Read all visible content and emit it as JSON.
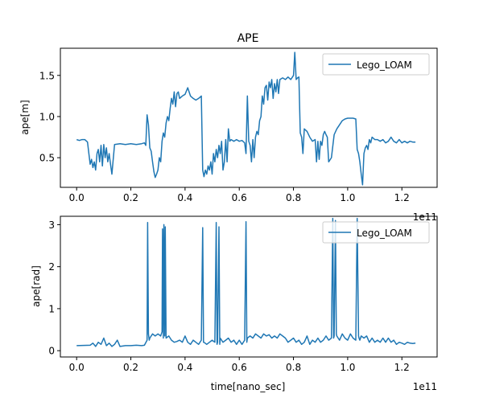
{
  "colors": {
    "series": "#1f77b4",
    "axis": "#000000",
    "legend_border": "#cccccc",
    "background": "#ffffff"
  },
  "chart_data": [
    {
      "type": "line",
      "title": "APE",
      "xlabel": "",
      "ylabel": "ape[m]",
      "x_offset_text": "1e11",
      "xlim": [
        -0.06,
        1.33
      ],
      "ylim": [
        0.14,
        1.83
      ],
      "x_ticks": [
        0.0,
        0.2,
        0.4,
        0.6,
        0.8,
        1.0,
        1.2
      ],
      "x_tick_labels": [
        "0.0",
        "0.2",
        "0.4",
        "0.6",
        "0.8",
        "1.0",
        "1.2"
      ],
      "y_ticks": [
        0.5,
        1.0,
        1.5
      ],
      "y_tick_labels": [
        "0.5",
        "1.0",
        "1.5"
      ],
      "grid": false,
      "legend": {
        "placement": "top-right",
        "entries": [
          "Lego_LOAM"
        ]
      },
      "series": [
        {
          "name": "Lego_LOAM",
          "x": [
            0.0,
            0.01,
            0.02,
            0.03,
            0.04,
            0.045,
            0.05,
            0.055,
            0.06,
            0.065,
            0.07,
            0.075,
            0.08,
            0.085,
            0.09,
            0.095,
            0.1,
            0.105,
            0.11,
            0.115,
            0.12,
            0.125,
            0.13,
            0.14,
            0.16,
            0.18,
            0.2,
            0.22,
            0.24,
            0.25,
            0.255,
            0.26,
            0.265,
            0.27,
            0.275,
            0.28,
            0.285,
            0.29,
            0.295,
            0.3,
            0.305,
            0.31,
            0.315,
            0.32,
            0.325,
            0.33,
            0.335,
            0.34,
            0.345,
            0.35,
            0.355,
            0.36,
            0.365,
            0.37,
            0.375,
            0.38,
            0.39,
            0.4,
            0.41,
            0.42,
            0.43,
            0.44,
            0.45,
            0.46,
            0.465,
            0.47,
            0.475,
            0.48,
            0.485,
            0.49,
            0.495,
            0.5,
            0.505,
            0.51,
            0.515,
            0.52,
            0.525,
            0.53,
            0.535,
            0.54,
            0.545,
            0.55,
            0.555,
            0.56,
            0.565,
            0.57,
            0.58,
            0.59,
            0.6,
            0.61,
            0.62,
            0.625,
            0.63,
            0.635,
            0.64,
            0.645,
            0.65,
            0.655,
            0.66,
            0.665,
            0.67,
            0.675,
            0.68,
            0.685,
            0.69,
            0.695,
            0.7,
            0.705,
            0.71,
            0.715,
            0.72,
            0.725,
            0.73,
            0.735,
            0.74,
            0.745,
            0.75,
            0.76,
            0.77,
            0.78,
            0.79,
            0.8,
            0.805,
            0.81,
            0.815,
            0.82,
            0.825,
            0.83,
            0.835,
            0.84,
            0.85,
            0.86,
            0.87,
            0.88,
            0.885,
            0.89,
            0.895,
            0.9,
            0.905,
            0.91,
            0.915,
            0.92,
            0.925,
            0.93,
            0.94,
            0.95,
            0.96,
            0.97,
            0.98,
            0.99,
            1.0,
            1.01,
            1.02,
            1.03,
            1.035,
            1.04,
            1.045,
            1.05,
            1.055,
            1.06,
            1.065,
            1.07,
            1.075,
            1.08,
            1.085,
            1.09,
            1.1,
            1.11,
            1.12,
            1.13,
            1.14,
            1.15,
            1.16,
            1.17,
            1.18,
            1.19,
            1.2,
            1.21,
            1.22,
            1.23,
            1.24,
            1.25
          ],
          "y": [
            0.72,
            0.71,
            0.72,
            0.72,
            0.69,
            0.55,
            0.42,
            0.48,
            0.38,
            0.45,
            0.35,
            0.55,
            0.6,
            0.45,
            0.65,
            0.4,
            0.66,
            0.5,
            0.62,
            0.45,
            0.55,
            0.42,
            0.3,
            0.66,
            0.67,
            0.66,
            0.67,
            0.66,
            0.67,
            0.68,
            0.65,
            1.02,
            0.9,
            0.62,
            0.58,
            0.45,
            0.33,
            0.26,
            0.3,
            0.35,
            0.5,
            0.45,
            0.7,
            0.8,
            0.75,
            0.92,
            1.0,
            0.95,
            1.1,
            1.22,
            1.15,
            1.3,
            1.12,
            1.28,
            1.3,
            1.22,
            1.25,
            1.27,
            1.35,
            1.25,
            1.22,
            1.2,
            1.22,
            1.25,
            0.35,
            0.27,
            0.35,
            0.3,
            0.4,
            0.35,
            0.45,
            0.3,
            0.55,
            0.45,
            0.6,
            0.5,
            0.65,
            0.55,
            0.7,
            0.35,
            0.45,
            0.72,
            0.45,
            0.85,
            0.7,
            0.72,
            0.7,
            0.72,
            0.7,
            0.71,
            0.68,
            0.55,
            1.25,
            0.7,
            0.65,
            0.45,
            0.72,
            0.5,
            0.75,
            0.82,
            0.78,
            0.95,
            1.0,
            1.25,
            1.15,
            1.35,
            1.38,
            1.2,
            1.42,
            1.35,
            1.45,
            1.22,
            1.4,
            1.3,
            1.45,
            1.28,
            1.45,
            1.47,
            1.45,
            1.48,
            1.45,
            1.5,
            1.78,
            1.45,
            1.47,
            1.48,
            0.8,
            0.75,
            0.55,
            0.85,
            0.82,
            0.75,
            0.7,
            0.72,
            0.45,
            0.7,
            0.48,
            0.7,
            0.65,
            0.78,
            0.82,
            0.78,
            0.75,
            0.45,
            0.5,
            0.78,
            0.85,
            0.9,
            0.95,
            0.97,
            0.98,
            0.98,
            0.98,
            0.97,
            0.6,
            0.55,
            0.45,
            0.3,
            0.17,
            0.55,
            0.62,
            0.65,
            0.6,
            0.72,
            0.68,
            0.75,
            0.72,
            0.72,
            0.7,
            0.72,
            0.68,
            0.7,
            0.75,
            0.7,
            0.68,
            0.72,
            0.68,
            0.7,
            0.68,
            0.7,
            0.69,
            0.69
          ]
        }
      ]
    },
    {
      "type": "line",
      "title": "",
      "xlabel": "time[nano_sec]",
      "ylabel": "ape[rad]",
      "x_offset_text": "1e11",
      "xlim": [
        -0.06,
        1.33
      ],
      "ylim": [
        -0.15,
        3.2
      ],
      "x_ticks": [
        0.0,
        0.2,
        0.4,
        0.6,
        0.8,
        1.0,
        1.2
      ],
      "x_tick_labels": [
        "0.0",
        "0.2",
        "0.4",
        "0.6",
        "0.8",
        "1.0",
        "1.2"
      ],
      "y_ticks": [
        0,
        1,
        2,
        3
      ],
      "y_tick_labels": [
        "0",
        "1",
        "2",
        "3"
      ],
      "grid": false,
      "legend": {
        "placement": "top-right",
        "entries": [
          "Lego_LOAM"
        ]
      },
      "series": [
        {
          "name": "Lego_LOAM",
          "x": [
            0.0,
            0.05,
            0.06,
            0.07,
            0.08,
            0.09,
            0.1,
            0.11,
            0.12,
            0.13,
            0.14,
            0.15,
            0.16,
            0.18,
            0.2,
            0.22,
            0.24,
            0.25,
            0.26,
            0.262,
            0.265,
            0.268,
            0.27,
            0.28,
            0.29,
            0.3,
            0.31,
            0.315,
            0.317,
            0.32,
            0.322,
            0.325,
            0.327,
            0.33,
            0.34,
            0.35,
            0.36,
            0.37,
            0.38,
            0.39,
            0.4,
            0.41,
            0.42,
            0.43,
            0.44,
            0.45,
            0.46,
            0.465,
            0.468,
            0.47,
            0.48,
            0.49,
            0.5,
            0.51,
            0.515,
            0.518,
            0.52,
            0.525,
            0.528,
            0.53,
            0.535,
            0.54,
            0.55,
            0.56,
            0.57,
            0.58,
            0.59,
            0.6,
            0.61,
            0.62,
            0.625,
            0.628,
            0.63,
            0.64,
            0.65,
            0.66,
            0.67,
            0.68,
            0.69,
            0.7,
            0.71,
            0.72,
            0.73,
            0.74,
            0.75,
            0.76,
            0.77,
            0.78,
            0.79,
            0.8,
            0.81,
            0.82,
            0.83,
            0.84,
            0.85,
            0.86,
            0.87,
            0.88,
            0.89,
            0.9,
            0.91,
            0.92,
            0.93,
            0.94,
            0.945,
            0.948,
            0.95,
            0.955,
            0.958,
            0.96,
            0.965,
            0.97,
            0.98,
            0.99,
            1.0,
            1.01,
            1.02,
            1.03,
            1.035,
            1.04,
            1.042,
            1.045,
            1.05,
            1.06,
            1.07,
            1.08,
            1.09,
            1.1,
            1.11,
            1.12,
            1.13,
            1.14,
            1.15,
            1.16,
            1.17,
            1.18,
            1.19,
            1.2,
            1.21,
            1.22,
            1.23,
            1.24,
            1.25
          ],
          "y": [
            0.12,
            0.13,
            0.18,
            0.1,
            0.2,
            0.15,
            0.3,
            0.12,
            0.18,
            0.1,
            0.15,
            0.25,
            0.1,
            0.12,
            0.12,
            0.13,
            0.12,
            0.13,
            0.25,
            3.05,
            0.4,
            0.25,
            0.3,
            0.4,
            0.35,
            0.4,
            0.35,
            0.45,
            2.9,
            0.3,
            3.0,
            0.35,
            2.95,
            0.3,
            0.35,
            0.25,
            0.2,
            0.22,
            0.25,
            0.2,
            0.35,
            0.2,
            0.15,
            0.25,
            0.2,
            0.15,
            0.25,
            2.93,
            0.2,
            0.2,
            0.15,
            0.2,
            0.25,
            0.2,
            3.05,
            0.15,
            0.2,
            2.95,
            0.15,
            0.3,
            0.25,
            0.2,
            0.25,
            0.3,
            0.2,
            0.25,
            0.15,
            0.25,
            0.15,
            0.25,
            3.07,
            0.2,
            0.3,
            0.35,
            0.3,
            0.4,
            0.35,
            0.3,
            0.4,
            0.35,
            0.38,
            0.3,
            0.35,
            0.3,
            0.4,
            0.35,
            0.3,
            0.2,
            0.25,
            0.3,
            0.2,
            0.25,
            0.15,
            0.2,
            0.35,
            0.15,
            0.25,
            0.2,
            0.3,
            0.2,
            0.25,
            0.35,
            0.25,
            0.3,
            3.15,
            0.3,
            0.35,
            3.1,
            0.4,
            0.35,
            0.3,
            0.25,
            0.4,
            0.3,
            0.25,
            0.4,
            0.3,
            0.25,
            3.15,
            0.35,
            0.3,
            0.25,
            0.35,
            0.3,
            0.35,
            0.2,
            0.3,
            0.2,
            0.25,
            0.2,
            0.3,
            0.2,
            0.3,
            0.2,
            0.25,
            0.15,
            0.2,
            0.18,
            0.15,
            0.2,
            0.18,
            0.17,
            0.18
          ]
        }
      ]
    }
  ]
}
